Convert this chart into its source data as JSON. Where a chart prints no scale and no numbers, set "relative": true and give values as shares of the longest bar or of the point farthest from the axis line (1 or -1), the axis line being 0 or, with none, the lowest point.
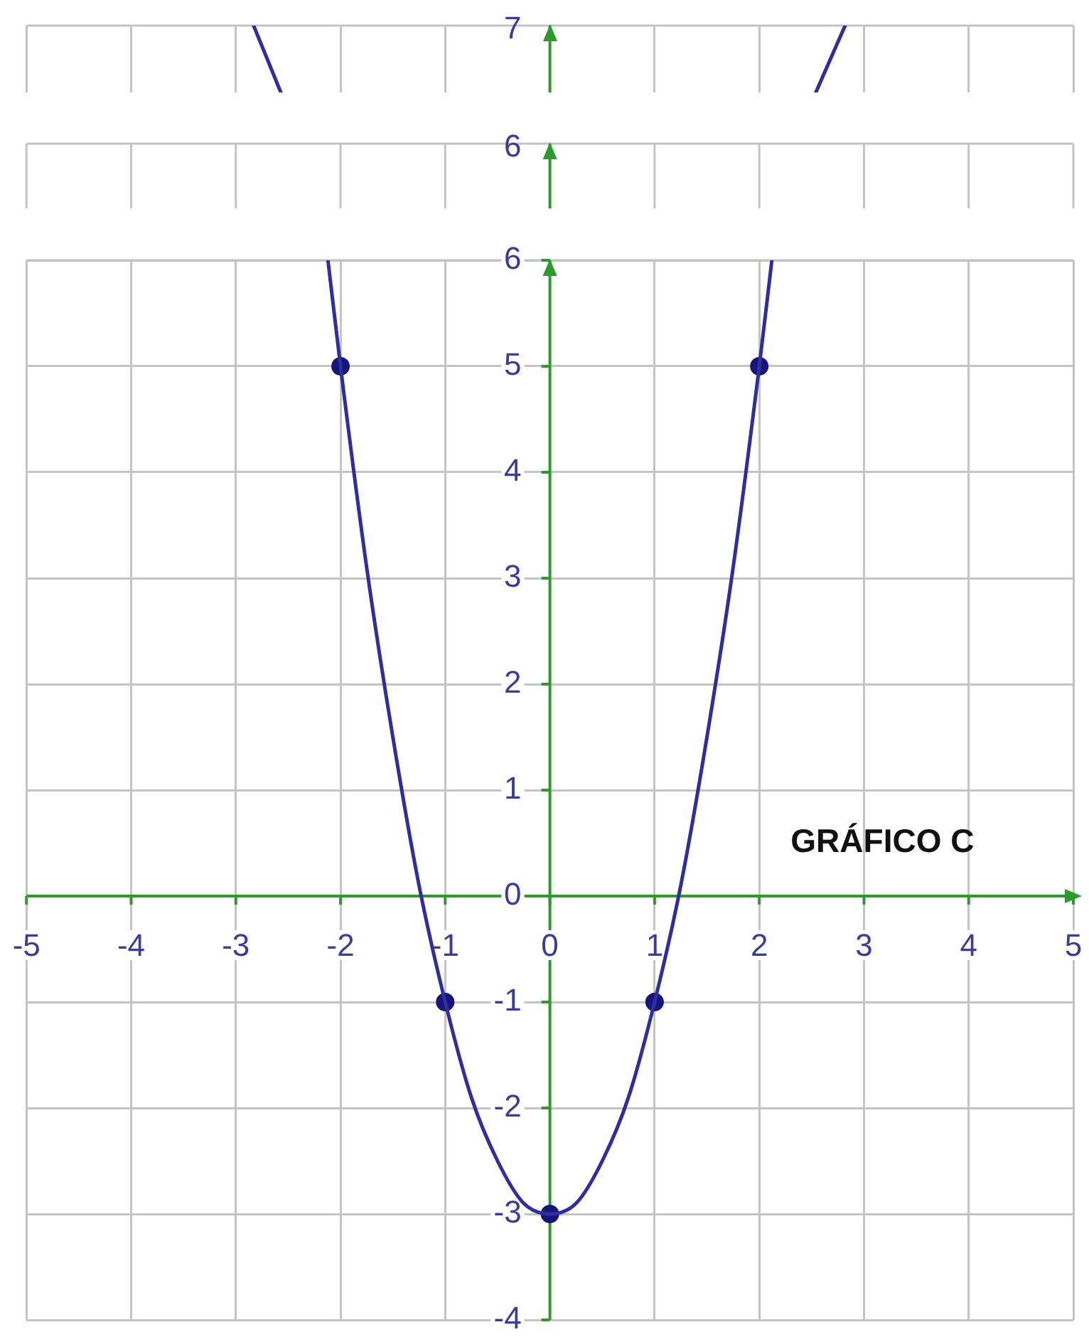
{
  "chart_data": [
    {
      "type": "line",
      "relative": true,
      "x": [
        -2.83,
        -2.57,
        0,
        2.54,
        2.82
      ],
      "series": [
        {
          "color": "#2e2e9e",
          "values": [
            1,
            0,
            null,
            0,
            1
          ]
        }
      ],
      "xlim": [
        -5,
        5
      ],
      "xticks": [
        -5,
        -4,
        -3,
        -2,
        -1,
        0,
        1,
        2,
        3,
        4,
        5
      ],
      "tick_labels": false,
      "grid": "x",
      "marker": "none",
      "annotations": [
        "7"
      ],
      "ref_lines": [
        {
          "axis": "x",
          "value": 0,
          "color": "#2e9a2e"
        }
      ]
    },
    {
      "type": "other",
      "annotations": [
        "6"
      ]
    },
    {
      "type": "line",
      "title": "GRÁFICO C",
      "xlim": [
        -5,
        5
      ],
      "xticks": [
        -5,
        -4,
        -3,
        -2,
        -1,
        0,
        1,
        2,
        3,
        4,
        5
      ],
      "ylim": [
        -4,
        6
      ],
      "yticks": [
        -4,
        -3,
        -2,
        -1,
        0,
        1,
        2,
        3,
        4,
        5,
        6
      ],
      "grid": true,
      "series": [
        {
          "type": "line",
          "color": "#2e2e9e",
          "marker": "none",
          "x": [
            -2.12,
            -2,
            -1.75,
            -1.5,
            -1.25,
            -1,
            -0.75,
            -0.5,
            -0.25,
            0,
            0.25,
            0.5,
            0.75,
            1,
            1.25,
            1.5,
            1.75,
            2,
            2.12
          ],
          "values": [
            6,
            5,
            3.1,
            1.5,
            0.1,
            -1,
            -1.9,
            -2.5,
            -2.9,
            -3,
            -2.9,
            -2.5,
            -1.9,
            -1,
            0.1,
            1.5,
            3.1,
            5,
            6
          ]
        },
        {
          "type": "scatter",
          "color": "#16167a",
          "marker": "circle",
          "x": [
            -2,
            -1,
            0,
            1,
            2
          ],
          "values": [
            5,
            -1,
            -3,
            -1,
            5
          ]
        }
      ]
    }
  ]
}
